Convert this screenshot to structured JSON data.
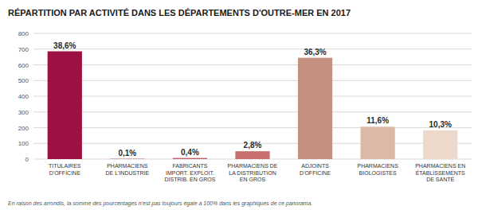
{
  "chart_data": {
    "type": "bar",
    "title": "RÉPARTITION PAR ACTIVITÉ DANS LES DÉPARTEMENTS D'OUTRE-MER EN 2017",
    "categories": [
      "TITULAIRES\nD'OFFICINE",
      "PHARMACIENS\nDE L'INDUSTRIE",
      "FABRICANTS\nIMPORT. EXPLOIT.\nDISTRIB. EN GROS",
      "PHARMACIENS DE\nLA DISTRIBUTION\nEN GROS",
      "ADJOINTS\nD'OFFICINE",
      "PHARMACIENS\nBIOLOGISTES",
      "PHARMACIENS EN\nÉTABLISSEMENTS\nDE SANTÉ"
    ],
    "values": [
      686,
      2,
      7,
      50,
      645,
      206,
      183
    ],
    "percentages": [
      {
        "value": 38.6,
        "label": "38,6%"
      },
      {
        "value": 0.1,
        "label": "0,1%"
      },
      {
        "value": 0.4,
        "label": "0,4%"
      },
      {
        "value": 2.8,
        "label": "2,8%"
      },
      {
        "value": 36.3,
        "label": "36,3%"
      },
      {
        "value": 11.6,
        "label": "11,6%"
      },
      {
        "value": 10.3,
        "label": "10,3%"
      }
    ],
    "colors": [
      "#9b1143",
      "#c0606a",
      "#c0606a",
      "#c87070",
      "#c49080",
      "#ddb8a8",
      "#edd8cc"
    ],
    "ylim": [
      0,
      800
    ],
    "yticks": [
      0,
      100,
      200,
      300,
      400,
      500,
      600,
      700,
      800
    ],
    "grid": true,
    "annotations": [
      "En raison des arrondis, la somme des pourcentages n'est pas toujours égale à 100% dans les graphiques de ce panorama."
    ]
  }
}
